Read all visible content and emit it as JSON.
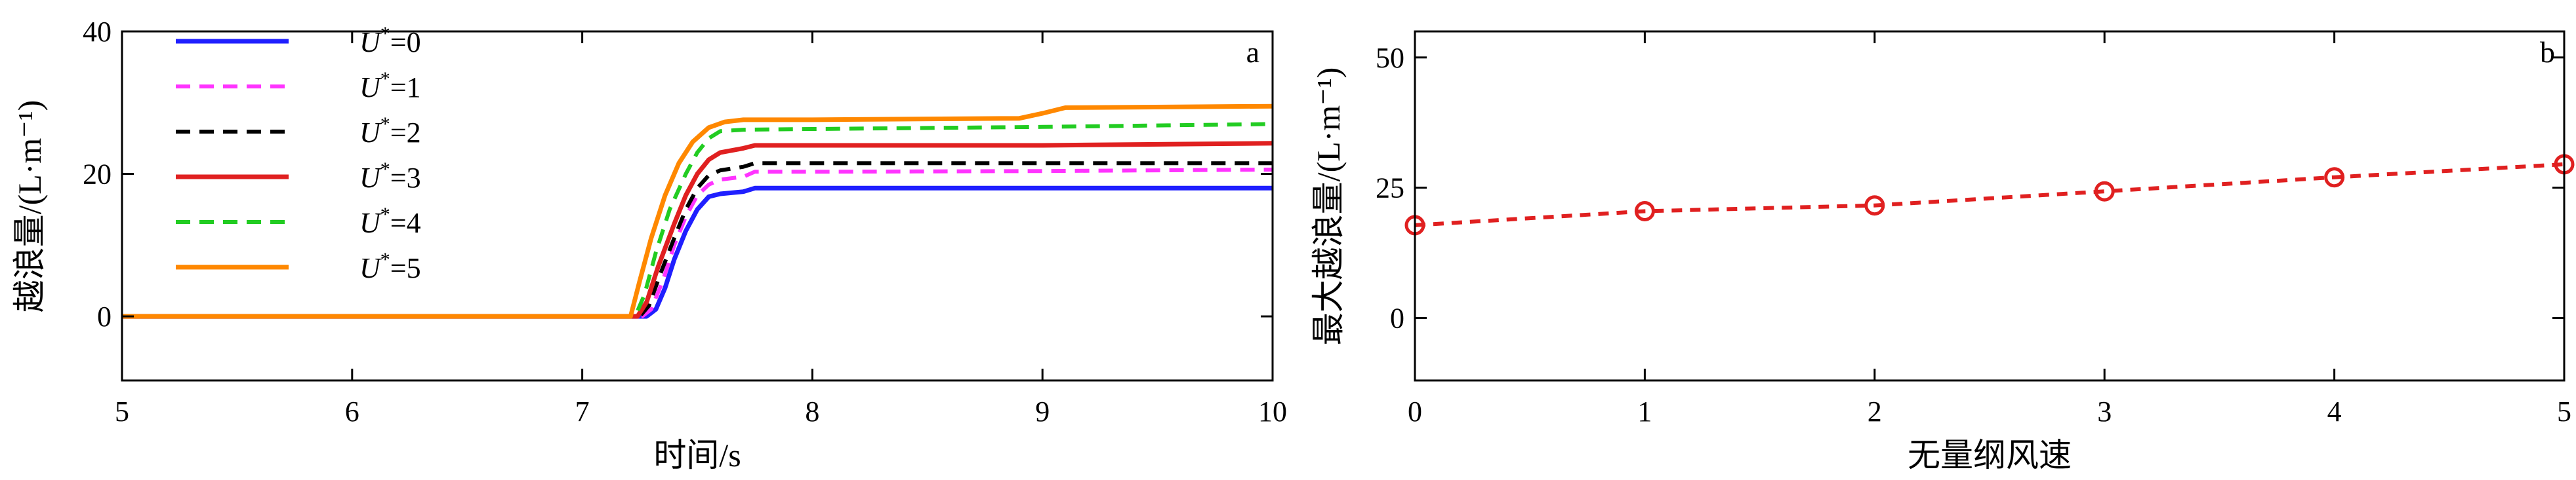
{
  "chart_data": [
    {
      "panel": "a",
      "type": "line",
      "xlabel": "时间/s",
      "ylabel": "越浪量/(L·m⁻¹)",
      "xlim": [
        5,
        10
      ],
      "ylim": [
        -9,
        40
      ],
      "xticks": [
        5,
        6,
        7,
        8,
        9,
        10
      ],
      "yticks": [
        0,
        20,
        40
      ],
      "legend_position": "top-left",
      "series": [
        {
          "name": "U*=0",
          "color": "#1f1fff",
          "dash": "solid",
          "x": [
            5,
            7.28,
            7.32,
            7.36,
            7.4,
            7.45,
            7.5,
            7.55,
            7.6,
            7.7,
            7.75,
            8.0,
            9.0,
            10.0
          ],
          "y": [
            0,
            0,
            1,
            4,
            8,
            12,
            15,
            16.8,
            17.2,
            17.5,
            18,
            18,
            18,
            18
          ]
        },
        {
          "name": "U*=1",
          "color": "#ff33ff",
          "dash": "dashed",
          "x": [
            5,
            7.26,
            7.3,
            7.35,
            7.4,
            7.45,
            7.5,
            7.55,
            7.6,
            7.7,
            7.75,
            8.0,
            9.0,
            10.0
          ],
          "y": [
            0,
            0,
            1,
            5,
            10,
            14,
            17,
            18.5,
            19.2,
            19.6,
            20.3,
            20.3,
            20.4,
            20.6
          ]
        },
        {
          "name": "U*=2",
          "color": "#000000",
          "dash": "dashed",
          "x": [
            5,
            7.25,
            7.29,
            7.34,
            7.4,
            7.45,
            7.5,
            7.55,
            7.6,
            7.7,
            7.75,
            8.0,
            9.0,
            10.0
          ],
          "y": [
            0,
            0,
            1.5,
            6,
            11,
            15,
            18,
            19.8,
            20.5,
            21,
            21.5,
            21.5,
            21.5,
            21.5
          ]
        },
        {
          "name": "U*=3",
          "color": "#e02020",
          "dash": "solid",
          "x": [
            5,
            7.24,
            7.28,
            7.33,
            7.4,
            7.45,
            7.5,
            7.55,
            7.6,
            7.7,
            7.75,
            8.0,
            9.0,
            10.0
          ],
          "y": [
            0,
            0,
            2,
            7,
            13,
            17,
            20,
            22,
            23,
            23.6,
            24,
            24,
            24,
            24.3
          ]
        },
        {
          "name": "U*=4",
          "color": "#22cc22",
          "dash": "dashed",
          "x": [
            5,
            7.23,
            7.27,
            7.32,
            7.38,
            7.45,
            7.5,
            7.55,
            7.6,
            7.7,
            8.0,
            9.0,
            10.0
          ],
          "y": [
            0,
            0,
            3,
            9,
            15,
            20,
            23,
            25,
            26,
            26.2,
            26.3,
            26.6,
            27
          ]
        },
        {
          "name": "U*=5",
          "color": "#ff8800",
          "dash": "solid",
          "x": [
            5,
            7.21,
            7.25,
            7.3,
            7.36,
            7.42,
            7.48,
            7.55,
            7.62,
            7.7,
            8.0,
            8.9,
            9.0,
            9.1,
            10.0
          ],
          "y": [
            0,
            0,
            5,
            11,
            17,
            21.5,
            24.5,
            26.5,
            27.3,
            27.6,
            27.6,
            27.8,
            28.5,
            29.3,
            29.5
          ]
        }
      ]
    },
    {
      "panel": "b",
      "type": "line",
      "xlabel": "无量纲风速",
      "ylabel": "最大越浪量/(L·m⁻¹)",
      "xlim": [
        0,
        5
      ],
      "ylim": [
        -12,
        55
      ],
      "xticks": [
        0,
        1,
        2,
        3,
        4,
        5
      ],
      "yticks": [
        0,
        25,
        50
      ],
      "series": [
        {
          "name": "",
          "color": "#e02020",
          "dash": "dashed",
          "marker": "circle",
          "x": [
            0,
            1,
            2,
            3,
            4,
            5
          ],
          "y": [
            17.8,
            20.5,
            21.6,
            24.3,
            27,
            29.5
          ]
        }
      ]
    }
  ]
}
